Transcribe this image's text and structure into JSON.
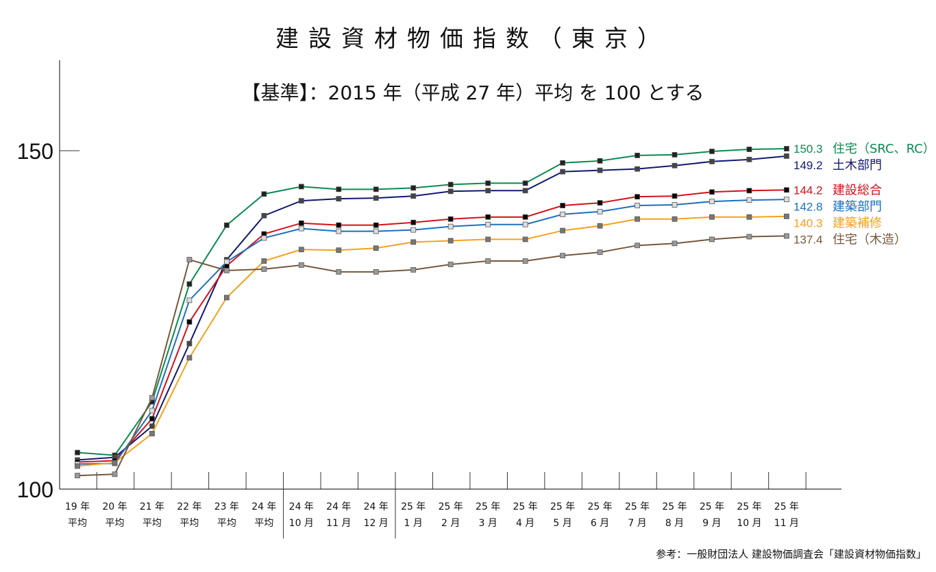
{
  "chart_data": {
    "type": "line",
    "title": "建設資材物価指数（東京）",
    "subtitle": "【基準】：2015 年（平成 27 年）平均 を 100 とする",
    "source": "参考：一般財団法人 建設物価調査会「建設資材物価指数」",
    "ylim": [
      100,
      160
    ],
    "yticks": [
      "150",
      "100"
    ],
    "ytick_values": [
      150,
      100
    ],
    "grid": false,
    "legend_placement": "right, at line ends",
    "categories": [
      [
        "19 年",
        "平均"
      ],
      [
        "20 年",
        "平均"
      ],
      [
        "21 年",
        "平均"
      ],
      [
        "22 年",
        "平均"
      ],
      [
        "23 年",
        "平均"
      ],
      [
        "24 年",
        "平均"
      ],
      [
        "24 年",
        "10 月"
      ],
      [
        "24 年",
        "11 月"
      ],
      [
        "24 年",
        "12 月"
      ],
      [
        "25 年",
        "1 月"
      ],
      [
        "25 年",
        "2 月"
      ],
      [
        "25 年",
        "3 月"
      ],
      [
        "25 年",
        "4 月"
      ],
      [
        "25 年",
        "5 月"
      ],
      [
        "25 年",
        "6 月"
      ],
      [
        "25 年",
        "7 月"
      ],
      [
        "25 年",
        "8 月"
      ],
      [
        "25 年",
        "9 月"
      ],
      [
        "25 年",
        "10 月"
      ],
      [
        "25 年",
        "11 月"
      ]
    ],
    "series": [
      {
        "name": "住宅（SRC、RC）",
        "end_label": "150.3",
        "color": "#0a8a4e",
        "marker": "#222222",
        "values": [
          105.4,
          105.0,
          112.9,
          130.3,
          139.0,
          143.6,
          144.7,
          144.3,
          144.3,
          144.5,
          145.0,
          145.2,
          145.2,
          148.2,
          148.5,
          149.3,
          149.4,
          149.9,
          150.2,
          150.3
        ]
      },
      {
        "name": "土木部門",
        "end_label": "149.2",
        "color": "#10186e",
        "marker": "#444444",
        "values": [
          104.3,
          104.7,
          109.3,
          121.5,
          133.9,
          140.4,
          142.6,
          142.9,
          143.0,
          143.3,
          144.0,
          144.1,
          144.1,
          146.9,
          147.1,
          147.3,
          147.8,
          148.4,
          148.7,
          149.2
        ]
      },
      {
        "name": "建設総合",
        "end_label": "144.2",
        "color": "#d4101c",
        "marker": "#000000",
        "values": [
          104.0,
          104.2,
          110.4,
          124.7,
          133.0,
          137.7,
          139.3,
          139.0,
          139.0,
          139.4,
          139.9,
          140.2,
          140.2,
          141.9,
          142.3,
          143.2,
          143.3,
          143.9,
          144.1,
          144.2
        ]
      },
      {
        "name": "建築部門",
        "end_label": "142.8",
        "color": "#1a6fc0",
        "marker": "#dddddd",
        "values": [
          103.7,
          103.8,
          111.6,
          127.9,
          133.6,
          137.1,
          138.5,
          138.1,
          138.1,
          138.3,
          138.8,
          139.1,
          139.1,
          140.6,
          141.0,
          141.9,
          142.0,
          142.5,
          142.7,
          142.8
        ]
      },
      {
        "name": "建築補修",
        "end_label": "140.3",
        "color": "#f5a01c",
        "marker": "#777777",
        "values": [
          103.4,
          103.9,
          108.2,
          119.4,
          128.3,
          133.7,
          135.4,
          135.3,
          135.6,
          136.5,
          136.7,
          136.9,
          136.9,
          138.2,
          138.9,
          139.9,
          139.9,
          140.2,
          140.2,
          140.3
        ]
      },
      {
        "name": "住宅（木造）",
        "end_label": "137.4",
        "color": "#76573a",
        "marker": "#999999",
        "values": [
          102.0,
          102.2,
          113.5,
          133.9,
          132.3,
          132.5,
          133.1,
          132.1,
          132.1,
          132.4,
          133.2,
          133.7,
          133.7,
          134.5,
          135.0,
          136.0,
          136.3,
          136.9,
          137.3,
          137.4
        ]
      }
    ]
  }
}
